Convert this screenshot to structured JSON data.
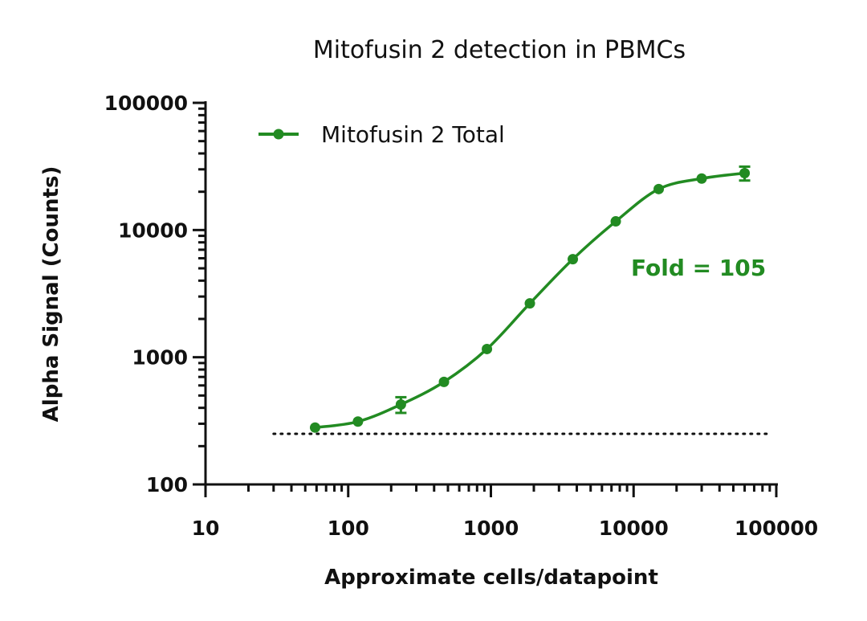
{
  "chart_data": {
    "type": "line",
    "title": "Mitofusin 2 detection in PBMCs",
    "xlabel": "Approximate cells/datapoint",
    "ylabel": "Alpha Signal (Counts)",
    "xscale": "log",
    "yscale": "log",
    "xlim": [
      10,
      100000
    ],
    "ylim": [
      100,
      100000
    ],
    "x_tick_labels": [
      "10",
      "100",
      "1000",
      "10000",
      "100000"
    ],
    "y_tick_labels": [
      "100",
      "1000",
      "10000",
      "100000"
    ],
    "grid": false,
    "legend_position": "top-left",
    "series": [
      {
        "name": "Mitofusin 2 Total",
        "color": "#228B22",
        "x": [
          58.6,
          117,
          234,
          469,
          938,
          1875,
          3750,
          7500,
          15000,
          30000,
          60000
        ],
        "y": [
          280,
          312,
          425,
          640,
          1160,
          2650,
          5900,
          11700,
          21000,
          25400,
          28000
        ],
        "error": [
          0,
          0,
          60,
          0,
          0,
          0,
          0,
          0,
          0,
          0,
          3500
        ],
        "fit": "sigmoidal curve"
      }
    ],
    "background_line": {
      "y": 250,
      "style": "dotted"
    },
    "annotations": [
      {
        "text": "Fold = 105",
        "color": "#228B22"
      }
    ]
  }
}
